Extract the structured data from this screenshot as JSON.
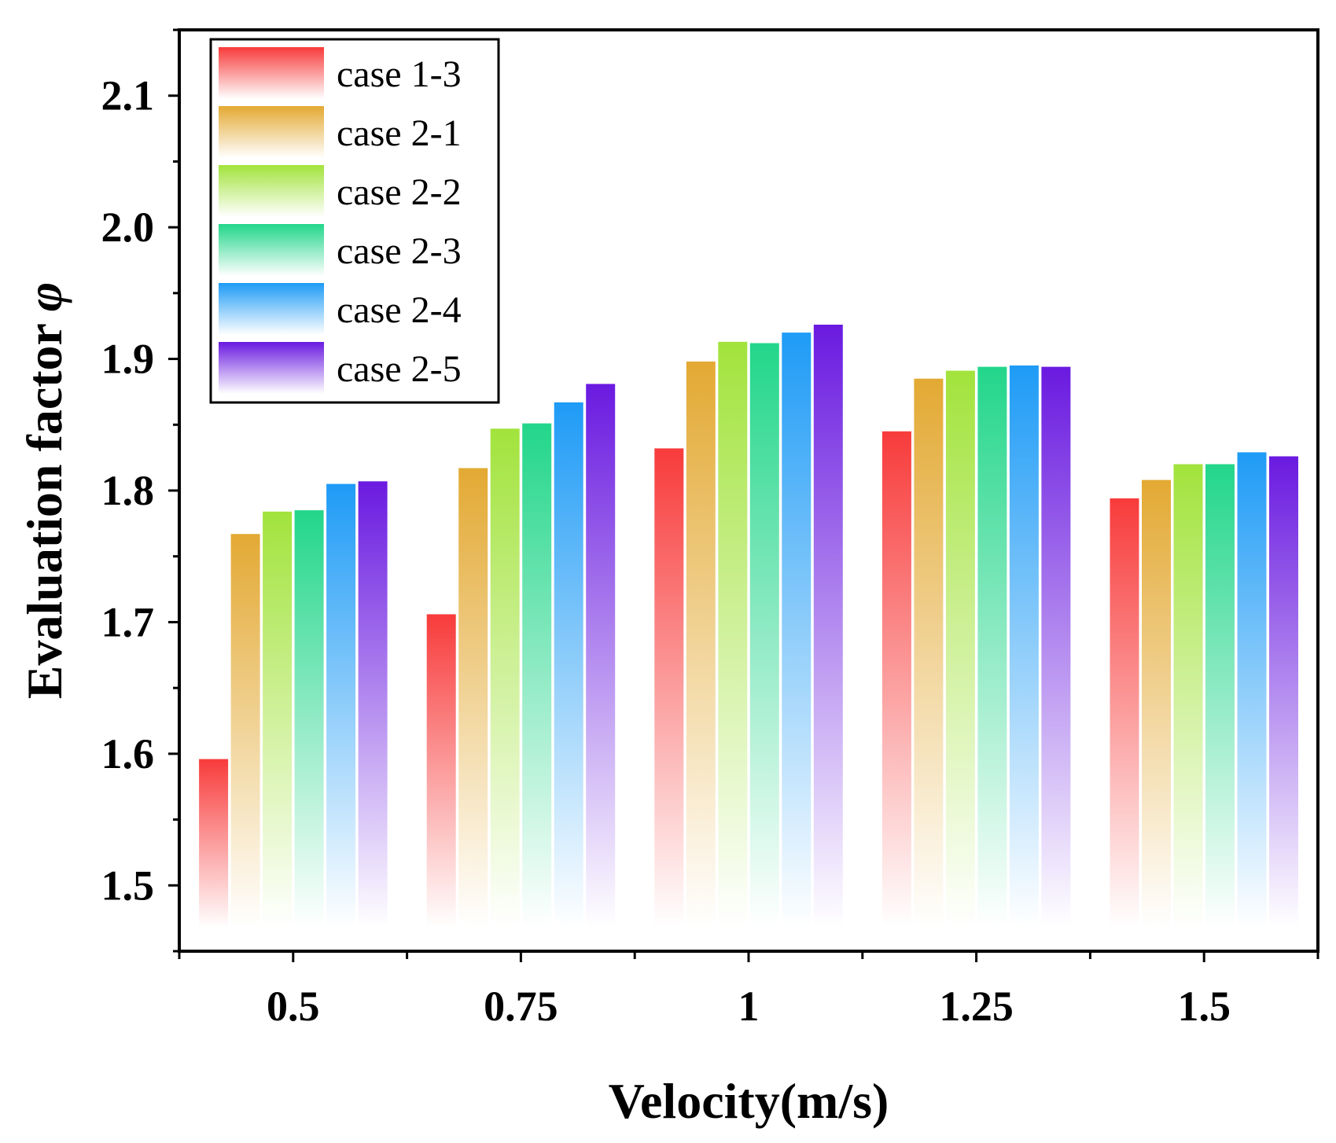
{
  "chart_data": {
    "type": "bar",
    "title": "",
    "xlabel": "Velocity(m/s)",
    "ylabel_text": "Evaluation factor ",
    "ylabel_symbol": "φ",
    "categories": [
      "0.5",
      "0.75",
      "1",
      "1.25",
      "1.5"
    ],
    "ylim": [
      1.45,
      2.15
    ],
    "yticks": [
      "1.5",
      "1.6",
      "1.7",
      "1.8",
      "1.9",
      "2.0",
      "2.1"
    ],
    "grid": false,
    "legend_position": "top-left",
    "series": [
      {
        "name": "case 1-3",
        "color": "#f83b3b",
        "values": [
          1.596,
          1.706,
          1.832,
          1.845,
          1.794
        ]
      },
      {
        "name": "case 2-1",
        "color": "#e3a933",
        "values": [
          1.767,
          1.817,
          1.898,
          1.885,
          1.808
        ]
      },
      {
        "name": "case 2-2",
        "color": "#a2e33c",
        "values": [
          1.784,
          1.847,
          1.913,
          1.891,
          1.82
        ]
      },
      {
        "name": "case 2-3",
        "color": "#22d68a",
        "values": [
          1.785,
          1.851,
          1.912,
          1.894,
          1.82
        ]
      },
      {
        "name": "case 2-4",
        "color": "#1e9bf6",
        "values": [
          1.805,
          1.867,
          1.92,
          1.895,
          1.829
        ]
      },
      {
        "name": "case 2-5",
        "color": "#6a1ae0",
        "values": [
          1.807,
          1.881,
          1.926,
          1.894,
          1.826
        ]
      }
    ]
  }
}
